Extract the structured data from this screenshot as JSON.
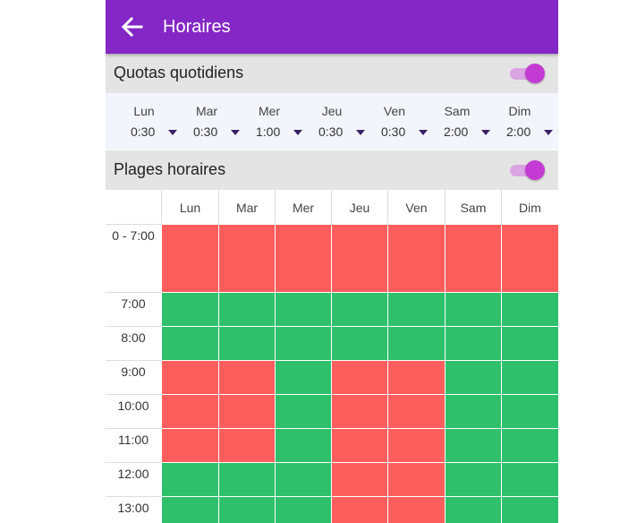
{
  "appbar": {
    "title": "Horaires",
    "back_icon": "arrow-left-icon",
    "color": "#8427c6"
  },
  "quotas": {
    "title": "Quotas quotidiens",
    "enabled": true,
    "days": [
      {
        "label": "Lun",
        "value": "0:30"
      },
      {
        "label": "Mar",
        "value": "0:30"
      },
      {
        "label": "Mer",
        "value": "1:00"
      },
      {
        "label": "Jeu",
        "value": "0:30"
      },
      {
        "label": "Ven",
        "value": "0:30"
      },
      {
        "label": "Sam",
        "value": "2:00"
      },
      {
        "label": "Dim",
        "value": "2:00"
      }
    ]
  },
  "ranges": {
    "title": "Plages horaires",
    "enabled": true,
    "days": [
      "Lun",
      "Mar",
      "Mer",
      "Jeu",
      "Ven",
      "Sam",
      "Dim"
    ],
    "rows": [
      {
        "label": "0 - 7:00",
        "cells": [
          "blocked",
          "blocked",
          "blocked",
          "blocked",
          "blocked",
          "blocked",
          "blocked"
        ]
      },
      {
        "label": "7:00",
        "cells": [
          "allowed",
          "allowed",
          "allowed",
          "allowed",
          "allowed",
          "allowed",
          "allowed"
        ]
      },
      {
        "label": "8:00",
        "cells": [
          "allowed",
          "allowed",
          "allowed",
          "allowed",
          "allowed",
          "allowed",
          "allowed"
        ]
      },
      {
        "label": "9:00",
        "cells": [
          "blocked",
          "blocked",
          "allowed",
          "blocked",
          "blocked",
          "allowed",
          "allowed"
        ]
      },
      {
        "label": "10:00",
        "cells": [
          "blocked",
          "blocked",
          "allowed",
          "blocked",
          "blocked",
          "allowed",
          "allowed"
        ]
      },
      {
        "label": "11:00",
        "cells": [
          "blocked",
          "blocked",
          "allowed",
          "blocked",
          "blocked",
          "allowed",
          "allowed"
        ]
      },
      {
        "label": "12:00",
        "cells": [
          "allowed",
          "allowed",
          "allowed",
          "blocked",
          "blocked",
          "allowed",
          "allowed"
        ]
      },
      {
        "label": "13:00",
        "cells": [
          "allowed",
          "allowed",
          "allowed",
          "blocked",
          "blocked",
          "allowed",
          "allowed"
        ]
      }
    ]
  },
  "colors": {
    "blocked": "#fe5d5d",
    "allowed": "#2fc06b",
    "switch_thumb": "#c43bd3",
    "switch_track": "#dba5e4"
  }
}
